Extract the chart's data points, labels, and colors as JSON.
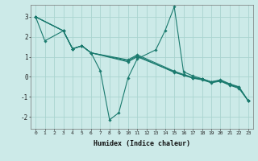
{
  "xlabel": "Humidex (Indice chaleur)",
  "bg_color": "#cceae8",
  "line_color": "#1a7a6e",
  "grid_color": "#aad4d0",
  "xlim": [
    -0.5,
    23.5
  ],
  "ylim": [
    -2.6,
    3.6
  ],
  "xticks": [
    0,
    1,
    2,
    3,
    4,
    5,
    6,
    7,
    8,
    9,
    10,
    11,
    12,
    13,
    14,
    15,
    16,
    17,
    18,
    19,
    20,
    21,
    22,
    23
  ],
  "yticks": [
    -2,
    -1,
    0,
    1,
    2,
    3
  ],
  "lines": [
    {
      "x": [
        0,
        1,
        3,
        4,
        5,
        6,
        7,
        8,
        9,
        10,
        11,
        13,
        14,
        15,
        16,
        17,
        18,
        19,
        20,
        21,
        22,
        23
      ],
      "y": [
        3.0,
        1.8,
        2.3,
        1.4,
        1.55,
        1.2,
        0.3,
        -2.15,
        -1.8,
        -0.05,
        0.9,
        1.35,
        2.3,
        3.5,
        0.25,
        0.05,
        -0.1,
        -0.25,
        -0.15,
        -0.35,
        -0.5,
        -1.2
      ]
    },
    {
      "x": [
        0,
        3,
        4,
        5,
        6,
        10,
        11,
        15,
        16,
        17,
        18,
        19,
        20,
        21,
        22,
        23
      ],
      "y": [
        3.0,
        2.3,
        1.4,
        1.55,
        1.2,
        0.75,
        1.0,
        0.25,
        0.1,
        -0.05,
        -0.12,
        -0.28,
        -0.2,
        -0.4,
        -0.55,
        -1.2
      ]
    },
    {
      "x": [
        0,
        3,
        4,
        5,
        6,
        10,
        11,
        15,
        16,
        17,
        18,
        19,
        20,
        21,
        22,
        23
      ],
      "y": [
        3.0,
        2.3,
        1.4,
        1.55,
        1.2,
        0.8,
        1.05,
        0.22,
        0.08,
        -0.07,
        -0.15,
        -0.3,
        -0.22,
        -0.42,
        -0.58,
        -1.2
      ]
    },
    {
      "x": [
        0,
        3,
        4,
        5,
        6,
        10,
        11,
        15,
        16,
        17,
        18,
        19,
        20,
        21,
        22,
        23
      ],
      "y": [
        3.0,
        2.3,
        1.4,
        1.55,
        1.2,
        0.85,
        1.1,
        0.28,
        0.12,
        -0.03,
        -0.1,
        -0.25,
        -0.18,
        -0.38,
        -0.52,
        -1.2
      ]
    }
  ]
}
